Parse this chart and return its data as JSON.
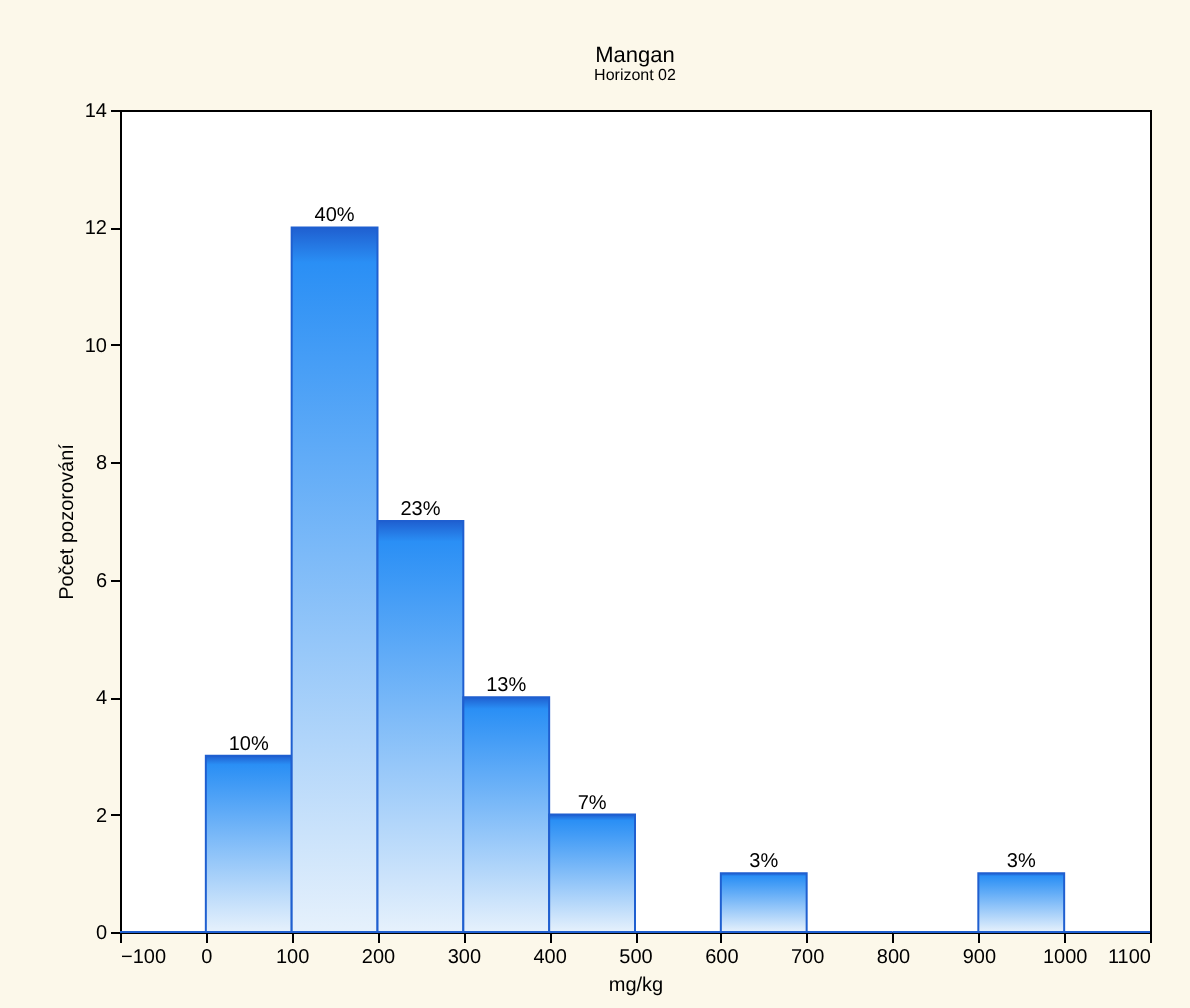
{
  "chart_data": {
    "type": "histogram",
    "title": "Mangan",
    "subtitle": "Horizont 02",
    "xlabel": "mg/kg",
    "ylabel": "Počet pozorování",
    "bins": [
      -100,
      0,
      100,
      200,
      300,
      400,
      500,
      600,
      700,
      800,
      900,
      1000,
      1100
    ],
    "values": [
      0,
      3,
      12,
      7,
      4,
      2,
      0,
      1,
      0,
      0,
      1,
      0
    ],
    "annotations": [
      {
        "text": "10%",
        "x": 50,
        "y": 3
      },
      {
        "text": "40%",
        "x": 150,
        "y": 12
      },
      {
        "text": "23%",
        "x": 250,
        "y": 7
      },
      {
        "text": "13%",
        "x": 350,
        "y": 4
      },
      {
        "text": "7%",
        "x": 450,
        "y": 2
      },
      {
        "text": "3%",
        "x": 650,
        "y": 1
      },
      {
        "text": "3%",
        "x": 950,
        "y": 1
      }
    ],
    "color": "#1f5fd0",
    "xlim": [
      -100,
      1100
    ],
    "xticks": [
      -100,
      0,
      100,
      200,
      300,
      400,
      500,
      600,
      700,
      800,
      900,
      1000,
      1100
    ],
    "ylim": [
      0,
      14
    ],
    "yticks": [
      0,
      2,
      4,
      6,
      8,
      10,
      12,
      14
    ],
    "grid": false
  }
}
